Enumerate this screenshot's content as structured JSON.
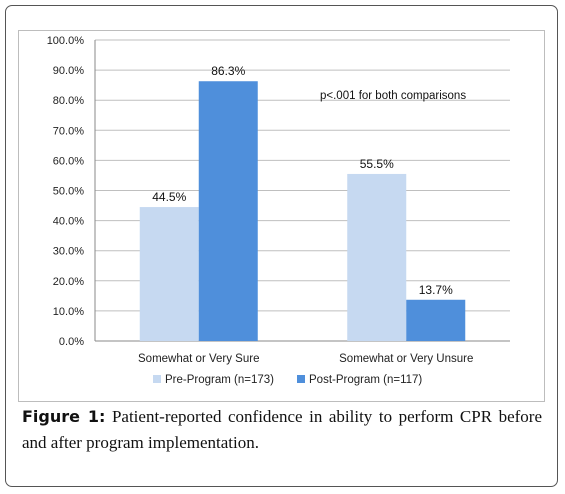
{
  "chart_data": {
    "type": "bar",
    "categories": [
      "Somewhat or Very Sure",
      "Somewhat or Very Unsure"
    ],
    "series": [
      {
        "name": "Pre-Program (n=173)",
        "values": [
          44.5,
          55.5
        ],
        "color": "#c6d9f1"
      },
      {
        "name": "Post-Program (n=117)",
        "values": [
          86.3,
          13.7
        ],
        "color": "#4f8fdb"
      }
    ],
    "data_labels": [
      [
        "44.5%",
        "55.5%"
      ],
      [
        "86.3%",
        "13.7%"
      ]
    ],
    "y_ticks": [
      "0.0%",
      "10.0%",
      "20.0%",
      "30.0%",
      "40.0%",
      "50.0%",
      "60.0%",
      "70.0%",
      "80.0%",
      "90.0%",
      "100.0%"
    ],
    "ylim": [
      0,
      100
    ],
    "grid": true,
    "legend_position": "bottom",
    "annotation": "p<.001 for both comparisons"
  },
  "caption": {
    "figure_label": "Figure 1:",
    "text": " Patient-reported confidence in ability to perform CPR before and after program implementation."
  }
}
